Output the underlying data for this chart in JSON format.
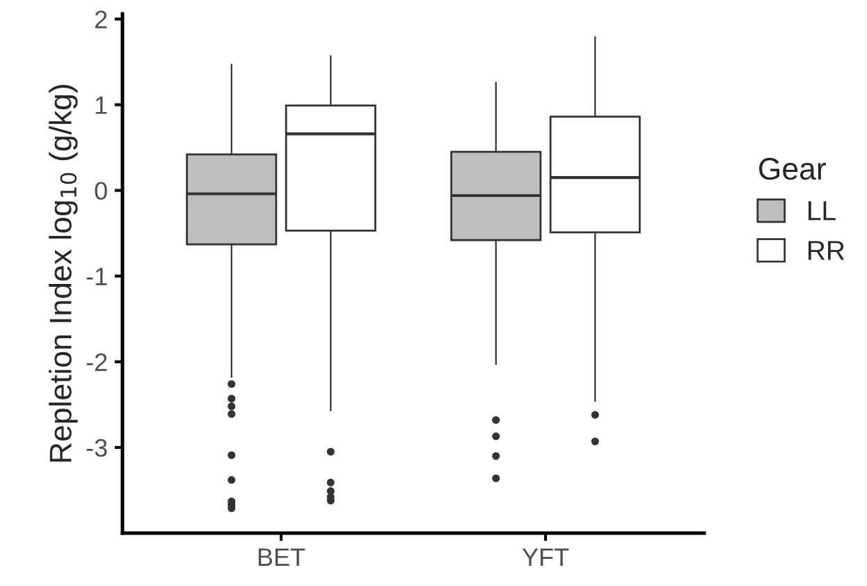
{
  "chart_data": {
    "type": "box",
    "ylabel": "Repletion Index log$_{10}$ (g/kg)",
    "legend_title": "Gear",
    "legend": "right",
    "grid": false,
    "categories": [
      "BET",
      "YFT"
    ],
    "ylim": [
      -4.0,
      2.06
    ],
    "yticks": [
      {
        "value": -3,
        "label": "-3"
      },
      {
        "value": -2,
        "label": "-2"
      },
      {
        "value": -1,
        "label": "-1"
      },
      0,
      1,
      2
    ],
    "series": [
      {
        "name": "LL",
        "color": "#bebebe",
        "boxes": [
          {
            "low": -2.18,
            "q1": -0.63,
            "median": -0.04,
            "q3": 0.42,
            "high": 1.47,
            "outliers": [
              -2.26,
              -2.43,
              -2.52,
              -2.61,
              -3.09,
              -3.38,
              -3.63,
              -3.67,
              -3.71
            ]
          },
          {
            "low": -2.03,
            "q1": -0.58,
            "median": -0.06,
            "q3": 0.45,
            "high": 1.26,
            "outliers": [
              -2.68,
              -2.87,
              -3.1,
              -3.36
            ]
          }
        ]
      },
      {
        "name": "RR",
        "color": "#ffffff",
        "boxes": [
          {
            "low": -2.57,
            "q1": -0.47,
            "median": 0.66,
            "q3": 0.99,
            "high": 1.57,
            "outliers": [
              -3.05,
              -3.41,
              -3.51,
              -3.58,
              -3.62
            ]
          },
          {
            "low": -2.46,
            "q1": -0.49,
            "median": 0.15,
            "q3": 0.86,
            "high": 1.79,
            "outliers": [
              -2.62,
              -2.93
            ]
          }
        ]
      }
    ]
  }
}
